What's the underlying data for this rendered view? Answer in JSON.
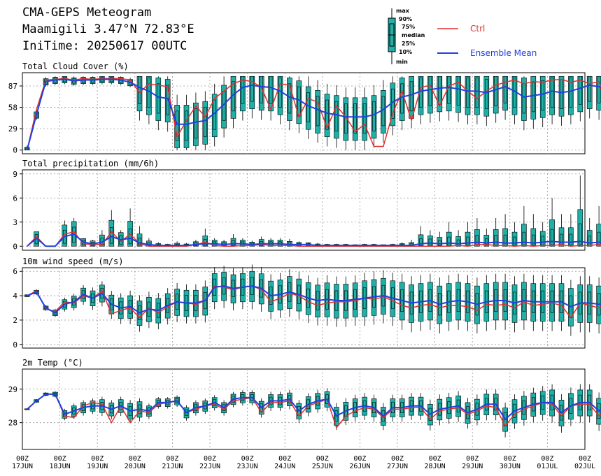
{
  "header": {
    "title": "CMA-GEPS Meteogram",
    "location": "Maamigili 3.47°N 72.83°E",
    "init": "IniTime: 20250617 00UTC"
  },
  "legend": {
    "box_labels": [
      "max",
      "90%",
      "75%",
      "median",
      "25%",
      "10%",
      "min"
    ],
    "ctrl_label": "Ctrl",
    "mean_label": "Ensemble Mean",
    "ctrl_color": "#e03030",
    "mean_color": "#2040e0",
    "box_color": "#20b0a8"
  },
  "x_axis": {
    "hour_label": "00Z",
    "dates": [
      "17JUN",
      "18JUN",
      "19JUN",
      "20JUN",
      "21JUN",
      "22JUN",
      "23JUN",
      "24JUN",
      "25JUN",
      "26JUN",
      "27JUN",
      "28JUN",
      "29JUN",
      "30JUN",
      "01JUL",
      "02JUL"
    ]
  },
  "chart_data": [
    {
      "type": "box",
      "title": "Total Cloud Cover (%)",
      "yticks": [
        0,
        29,
        58,
        87
      ],
      "ylim": [
        -5,
        105
      ],
      "ctrl": [
        0,
        55,
        95,
        96,
        97,
        95,
        97,
        96,
        97,
        97,
        97,
        95,
        78,
        90,
        88,
        86,
        18,
        40,
        60,
        45,
        70,
        80,
        90,
        95,
        93,
        85,
        55,
        90,
        88,
        45,
        70,
        65,
        30,
        60,
        45,
        25,
        35,
        5,
        5,
        50,
        80,
        40,
        85,
        88,
        60,
        87,
        92,
        80,
        70,
        80,
        88,
        92,
        95,
        90,
        93,
        92,
        95,
        96,
        92,
        95,
        90,
        93,
        50,
        95,
        88,
        80,
        92,
        95,
        60,
        92,
        95,
        25,
        88,
        95
      ],
      "mean": [
        0,
        48,
        93,
        95,
        96,
        94,
        95,
        95,
        96,
        96,
        95,
        92,
        85,
        80,
        72,
        70,
        35,
        35,
        38,
        40,
        50,
        62,
        75,
        85,
        88,
        86,
        85,
        80,
        72,
        68,
        60,
        55,
        50,
        48,
        45,
        45,
        45,
        48,
        55,
        65,
        72,
        75,
        80,
        82,
        84,
        85,
        83,
        80,
        80,
        78,
        82,
        86,
        80,
        72,
        74,
        76,
        80,
        78,
        80,
        84,
        88,
        86,
        82,
        85,
        84,
        80,
        82,
        85,
        80,
        84,
        85,
        80,
        85,
        88
      ],
      "boxes": {
        "q25_off": 22,
        "q75_off": 18,
        "lo_off": 45,
        "hi_off": 40
      }
    },
    {
      "type": "box",
      "title": "Total precipitation (mm/6h)",
      "yticks": [
        0,
        3,
        6,
        9
      ],
      "ylim": [
        -0.5,
        9.5
      ],
      "ctrl": [
        0,
        1.2,
        0,
        0,
        1.5,
        1.8,
        0.3,
        0.2,
        0.2,
        1.8,
        0.6,
        1.5,
        0.3,
        0,
        0,
        0,
        0,
        0,
        0.2,
        0.5,
        0.1,
        0,
        0,
        0.1,
        0.1,
        0.2,
        0.1,
        0.1,
        0.1,
        0,
        0,
        0,
        0,
        0,
        0,
        0,
        0,
        0,
        0,
        0,
        0,
        0,
        0,
        0,
        0,
        0,
        0.1,
        0,
        0.2,
        0.2,
        0.1,
        0.1,
        0,
        0.1,
        0,
        0.1,
        0.1,
        0.2,
        0,
        0.1,
        0.1,
        0.2,
        0.1,
        0.1,
        0.3,
        0.2,
        0.1,
        0.2,
        0.1,
        0.2,
        0.3,
        0.2,
        0.4,
        0.3
      ],
      "mean": [
        0,
        1.0,
        0,
        0,
        1.2,
        1.5,
        0.5,
        0.3,
        0.5,
        1.2,
        0.8,
        1.0,
        0.4,
        0.2,
        0.1,
        0.1,
        0.1,
        0.1,
        0.2,
        0.3,
        0.3,
        0.2,
        0.3,
        0.3,
        0.2,
        0.3,
        0.3,
        0.3,
        0.2,
        0.2,
        0.2,
        0.1,
        0.1,
        0.1,
        0.1,
        0.1,
        0.1,
        0.1,
        0.1,
        0.1,
        0.1,
        0.1,
        0.3,
        0.4,
        0.3,
        0.4,
        0.3,
        0.4,
        0.5,
        0.4,
        0.5,
        0.4,
        0.4,
        0.5,
        0.4,
        0.5,
        0.6,
        0.5,
        0.5,
        0.6,
        0.4,
        0.5,
        0.5,
        0.4,
        0.5,
        0.5,
        0.4,
        0.5,
        0.5,
        0.4,
        0.5,
        0.5,
        0.5,
        0.5
      ],
      "maxes": [
        0,
        1.8,
        0,
        0,
        3.2,
        3.5,
        1.0,
        0.8,
        2.0,
        4.5,
        2.0,
        4.7,
        2.5,
        1.0,
        0.5,
        0.3,
        0.6,
        0.4,
        0.8,
        2.2,
        1.0,
        0.8,
        1.5,
        1.0,
        0.7,
        1.2,
        1.0,
        1.0,
        0.9,
        0.6,
        0.5,
        0.4,
        0.3,
        0.3,
        0.3,
        0.2,
        0.3,
        0.3,
        0.2,
        0.3,
        0.5,
        0.8,
        2.5,
        2.0,
        1.8,
        3.0,
        2.0,
        3.0,
        3.5,
        2.2,
        3.5,
        4.0,
        3.0,
        5.0,
        4.0,
        3.0,
        6.0,
        4.0,
        4.0,
        8.8,
        3.5,
        5.0,
        4.0,
        4.5,
        6.5,
        5.0,
        4.0,
        5.5,
        4.5,
        5.0,
        6.2,
        5.0,
        4.5,
        5.2
      ]
    },
    {
      "type": "box",
      "title": "10m wind speed (m/s)",
      "yticks": [
        0,
        2,
        4,
        6
      ],
      "ylim": [
        -0.3,
        6.3
      ],
      "ctrl": [
        4.0,
        4.4,
        2.9,
        2.7,
        3.5,
        3.4,
        4.0,
        3.8,
        4.4,
        2.5,
        2.8,
        3.0,
        2.2,
        3.0,
        2.6,
        3.1,
        3.5,
        3.4,
        3.3,
        3.6,
        4.8,
        4.7,
        4.5,
        4.7,
        4.8,
        4.5,
        3.5,
        3.8,
        4.2,
        4.0,
        3.5,
        3.2,
        3.4,
        3.5,
        3.5,
        3.6,
        3.8,
        3.7,
        3.9,
        3.6,
        3.2,
        3.0,
        3.2,
        3.3,
        3.0,
        3.2,
        3.2,
        3.1,
        2.8,
        3.3,
        3.2,
        3.3,
        3.0,
        3.5,
        3.2,
        3.3,
        3.4,
        3.2,
        2.2,
        3.4,
        3.2,
        3.0,
        3.5,
        3.8,
        3.3,
        3.5,
        3.2,
        2.9,
        3.4,
        3.5,
        3.0,
        3.8,
        4.0,
        4.0
      ],
      "mean": [
        4.0,
        4.3,
        3.0,
        2.6,
        3.3,
        3.5,
        4.1,
        3.8,
        4.2,
        3.3,
        3.0,
        3.1,
        2.6,
        2.9,
        2.8,
        3.2,
        3.5,
        3.4,
        3.4,
        3.6,
        4.7,
        4.8,
        4.6,
        4.7,
        4.8,
        4.6,
        4.0,
        4.1,
        4.3,
        4.1,
        3.8,
        3.6,
        3.7,
        3.6,
        3.6,
        3.7,
        3.8,
        3.9,
        4.0,
        3.8,
        3.6,
        3.4,
        3.5,
        3.6,
        3.3,
        3.5,
        3.6,
        3.5,
        3.3,
        3.5,
        3.6,
        3.6,
        3.4,
        3.6,
        3.5,
        3.5,
        3.5,
        3.5,
        3.1,
        3.4,
        3.4,
        3.3,
        3.4,
        3.5,
        3.4,
        3.5,
        3.4,
        3.2,
        3.5,
        3.6,
        3.4,
        3.6,
        3.7,
        3.5
      ],
      "spread": [
        0.1,
        0.2,
        0.2,
        0.3,
        0.5,
        0.6,
        0.7,
        0.8,
        0.9,
        1.0,
        1.1,
        1.2,
        1.3,
        1.3,
        1.3,
        1.3,
        1.4,
        1.4,
        1.4,
        1.5,
        1.5,
        1.5,
        1.5,
        1.5,
        1.6,
        1.6,
        1.6,
        1.6,
        1.7,
        1.7,
        1.7,
        1.7,
        1.8,
        1.8,
        1.8,
        1.8,
        1.9,
        1.9,
        1.9,
        1.9,
        2.0,
        2.0,
        2.0,
        2.0,
        2.0,
        2.0,
        2.0,
        2.0,
        2.0,
        2.0,
        2.0,
        2.0,
        2.0,
        2.0,
        2.0,
        2.0,
        2.0,
        2.0,
        2.0,
        2.0,
        2.0,
        2.0,
        2.0,
        2.0,
        2.0,
        2.0,
        2.0,
        2.0,
        2.0,
        2.0,
        2.0,
        2.0,
        2.0,
        2.0
      ]
    },
    {
      "type": "box",
      "title": "2m Temp (°C)",
      "yticks": [
        28,
        29
      ],
      "ylim": [
        27.2,
        29.6
      ],
      "ctrl": [
        28.4,
        28.65,
        28.85,
        28.85,
        28.2,
        28.15,
        28.5,
        28.6,
        28.55,
        28.0,
        28.5,
        28.0,
        28.35,
        28.3,
        28.55,
        28.6,
        28.65,
        28.3,
        28.4,
        28.5,
        28.55,
        28.4,
        28.65,
        28.7,
        28.75,
        28.3,
        28.6,
        28.6,
        28.65,
        28.2,
        28.5,
        28.6,
        28.7,
        27.85,
        28.2,
        28.35,
        28.45,
        28.4,
        28.15,
        28.4,
        28.4,
        28.45,
        28.45,
        28.1,
        28.35,
        28.4,
        28.45,
        28.25,
        28.35,
        28.5,
        28.45,
        27.9,
        28.25,
        28.4,
        28.5,
        28.6,
        28.55,
        28.2,
        28.5,
        28.55,
        28.55,
        28.2,
        28.45,
        28.5,
        28.55,
        28.25,
        28.45,
        28.6,
        28.65,
        28.7,
        28.4,
        28.5,
        28.35,
        28.1
      ],
      "mean": [
        28.4,
        28.65,
        28.85,
        28.85,
        28.25,
        28.35,
        28.45,
        28.5,
        28.5,
        28.4,
        28.5,
        28.35,
        28.4,
        28.35,
        28.6,
        28.6,
        28.65,
        28.3,
        28.45,
        28.5,
        28.6,
        28.45,
        28.7,
        28.75,
        28.75,
        28.45,
        28.65,
        28.65,
        28.7,
        28.35,
        28.55,
        28.65,
        28.7,
        28.2,
        28.35,
        28.45,
        28.5,
        28.45,
        28.2,
        28.45,
        28.45,
        28.5,
        28.5,
        28.25,
        28.4,
        28.45,
        28.5,
        28.3,
        28.4,
        28.55,
        28.55,
        28.1,
        28.35,
        28.45,
        28.55,
        28.6,
        28.6,
        28.3,
        28.5,
        28.6,
        28.6,
        28.35,
        28.5,
        28.55,
        28.6,
        28.3,
        28.5,
        28.6,
        28.7,
        28.65,
        28.45,
        28.55,
        28.5,
        28.35
      ],
      "spread": [
        0.02,
        0.05,
        0.05,
        0.08,
        0.15,
        0.2,
        0.2,
        0.2,
        0.25,
        0.25,
        0.25,
        0.3,
        0.3,
        0.2,
        0.15,
        0.15,
        0.15,
        0.2,
        0.2,
        0.2,
        0.2,
        0.2,
        0.2,
        0.2,
        0.2,
        0.25,
        0.25,
        0.25,
        0.25,
        0.3,
        0.3,
        0.3,
        0.3,
        0.35,
        0.35,
        0.35,
        0.35,
        0.35,
        0.35,
        0.35,
        0.35,
        0.35,
        0.35,
        0.4,
        0.4,
        0.4,
        0.4,
        0.4,
        0.4,
        0.4,
        0.4,
        0.45,
        0.45,
        0.45,
        0.45,
        0.45,
        0.5,
        0.5,
        0.5,
        0.5,
        0.5,
        0.5,
        0.55,
        0.55,
        0.55,
        0.55,
        0.55,
        0.6,
        0.6,
        0.6,
        0.6,
        0.6,
        0.6,
        0.6
      ]
    }
  ]
}
